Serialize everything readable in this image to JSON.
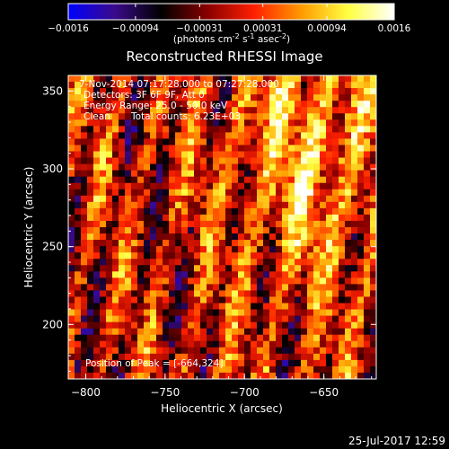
{
  "chart_data": {
    "type": "heatmap",
    "title": "Reconstructed RHESSI Image",
    "colorbar": {
      "min": -0.0016,
      "max": 0.0016,
      "ticks": [
        "-0.0016",
        "-0.00094",
        "-0.00031",
        "0.00031",
        "0.00094",
        "0.0016"
      ],
      "unit_main": "(photons cm",
      "unit_exp1": "-2",
      "unit_mid": " s",
      "unit_exp2": "-1",
      "unit_tail": " asec",
      "unit_exp3": "-2",
      "unit_close": ")",
      "stops": [
        "#0000ff",
        "#3a0a8a",
        "#000000",
        "#8a0000",
        "#ff2000",
        "#ff9a00",
        "#ffff40",
        "#ffffff"
      ]
    },
    "xlabel": "Heliocentric X (arcsec)",
    "ylabel": "Heliocentric Y (arcsec)",
    "xlim": [
      -811,
      -617
    ],
    "ylim": [
      165,
      360
    ],
    "xticks": [
      -800,
      -750,
      -700,
      -650
    ],
    "yticks": [
      200,
      250,
      300,
      350
    ],
    "annotations": {
      "time_range": "7-Nov-2014 07:17:28.000 to 07:27:28.000",
      "detectors": "Detectors: 3F 6F 9F, Att 0",
      "energy": "Energy Range: 25.0 - 50.0 keV",
      "method": "Clean",
      "counts": "Total counts: 6.23E+03",
      "peak": "Position of Peak = [-664,324]"
    },
    "footer_date": "25-Jul-2017 12:59"
  }
}
